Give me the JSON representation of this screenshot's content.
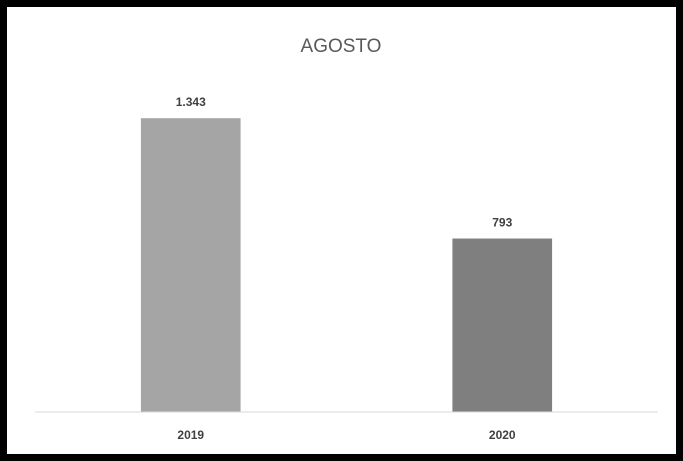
{
  "chart_data": {
    "type": "bar",
    "title": "AGOSTO",
    "categories": [
      "2019",
      "2020"
    ],
    "values": [
      1343,
      793
    ],
    "value_labels": [
      "1.343",
      "793"
    ],
    "bar_colors": [
      "#A5A5A5",
      "#7F7F7F"
    ],
    "axis_color": "#D9D9D9",
    "ylim": [
      0,
      1600
    ],
    "grid": false,
    "legend": "none"
  }
}
